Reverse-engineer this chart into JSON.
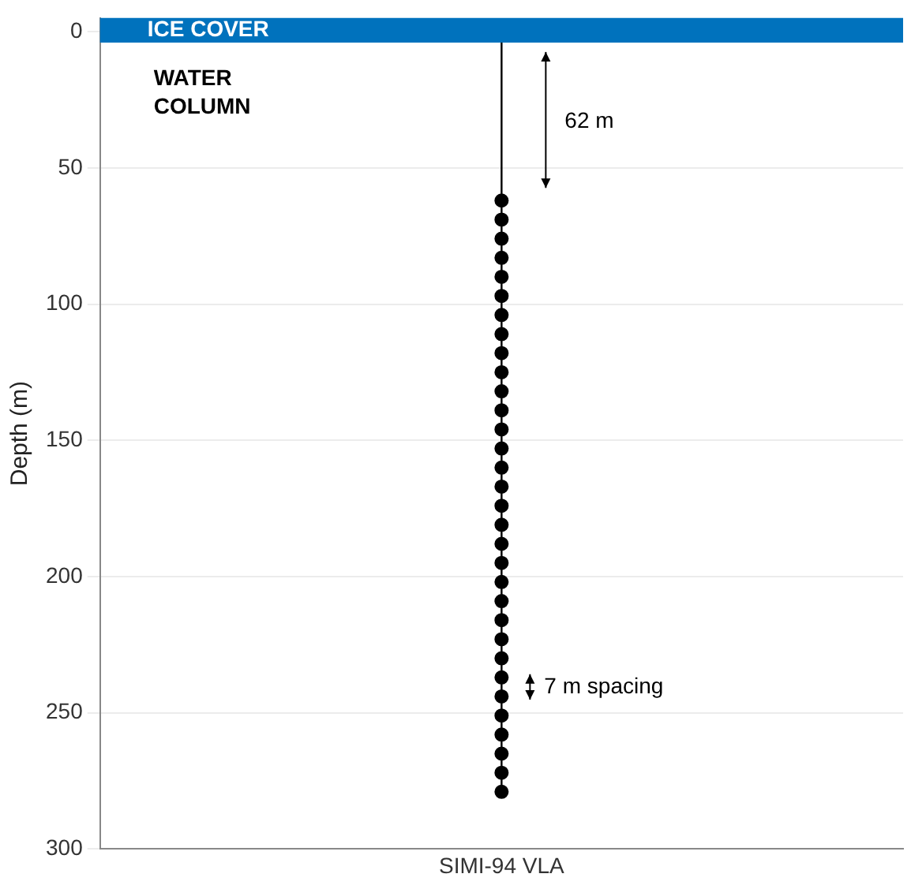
{
  "chart_data": {
    "type": "scatter",
    "ylabel": "Depth (m)",
    "categories": [
      "SIMI-94 VLA"
    ],
    "ylim": [
      300,
      -5
    ],
    "yticks": [
      0,
      50,
      100,
      150,
      200,
      250,
      300
    ],
    "grid": "y",
    "legend": false,
    "series": [
      {
        "x": [
          "SIMI-94 VLA",
          "SIMI-94 VLA",
          "SIMI-94 VLA",
          "SIMI-94 VLA",
          "SIMI-94 VLA",
          "SIMI-94 VLA",
          "SIMI-94 VLA",
          "SIMI-94 VLA",
          "SIMI-94 VLA",
          "SIMI-94 VLA",
          "SIMI-94 VLA",
          "SIMI-94 VLA",
          "SIMI-94 VLA",
          "SIMI-94 VLA",
          "SIMI-94 VLA",
          "SIMI-94 VLA",
          "SIMI-94 VLA",
          "SIMI-94 VLA",
          "SIMI-94 VLA",
          "SIMI-94 VLA",
          "SIMI-94 VLA",
          "SIMI-94 VLA",
          "SIMI-94 VLA",
          "SIMI-94 VLA",
          "SIMI-94 VLA",
          "SIMI-94 VLA",
          "SIMI-94 VLA",
          "SIMI-94 VLA",
          "SIMI-94 VLA",
          "SIMI-94 VLA",
          "SIMI-94 VLA",
          "SIMI-94 VLA"
        ],
        "values": [
          62,
          69,
          76,
          83,
          90,
          97,
          104,
          111,
          118,
          125,
          132,
          139,
          146,
          153,
          160,
          167,
          174,
          181,
          188,
          195,
          202,
          209,
          216,
          223,
          230,
          237,
          244,
          251,
          258,
          265,
          272,
          279
        ],
        "color": "#000000",
        "marker": "circle"
      }
    ],
    "bands": [
      {
        "axis": "y",
        "from": -5,
        "to": 4,
        "label": "ICE COVER",
        "color": "#0072bd"
      }
    ],
    "annotations": [
      "WATER COLUMN",
      "62 m",
      "7 m spacing"
    ]
  }
}
